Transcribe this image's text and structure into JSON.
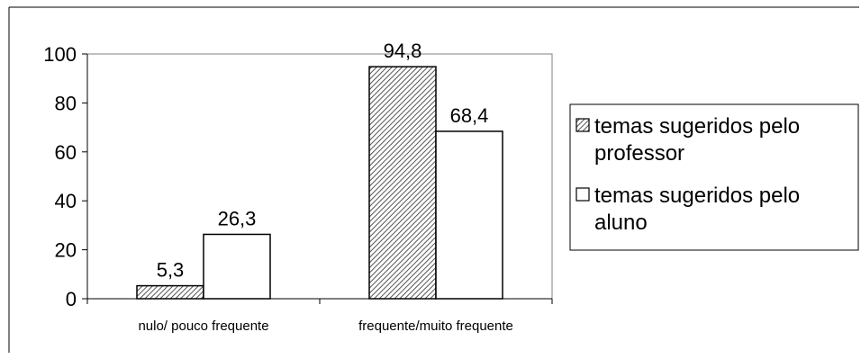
{
  "chart_data": {
    "type": "bar",
    "categories": [
      "nulo/ pouco frequente",
      "frequente/muito frequente"
    ],
    "series": [
      {
        "name": "temas sugeridos pelo professor",
        "legend_lines": [
          "temas sugeridos pelo",
          "professor"
        ],
        "values": [
          5.3,
          94.8
        ],
        "value_labels": [
          "5,3",
          "94,8"
        ],
        "fill": "hatched"
      },
      {
        "name": "temas sugeridos pelo aluno",
        "legend_lines": [
          "temas sugeridos pelo",
          "aluno"
        ],
        "values": [
          26.3,
          68.4
        ],
        "value_labels": [
          "26,3",
          "68,4"
        ],
        "fill": "white"
      }
    ],
    "yticks": [
      "0",
      "20",
      "40",
      "60",
      "80",
      "100"
    ],
    "ylim": [
      0,
      100
    ],
    "grid": false,
    "legend_position": "right",
    "colors": {
      "stroke": "#000000",
      "hatch": "#555555",
      "background": "#ffffff"
    }
  }
}
